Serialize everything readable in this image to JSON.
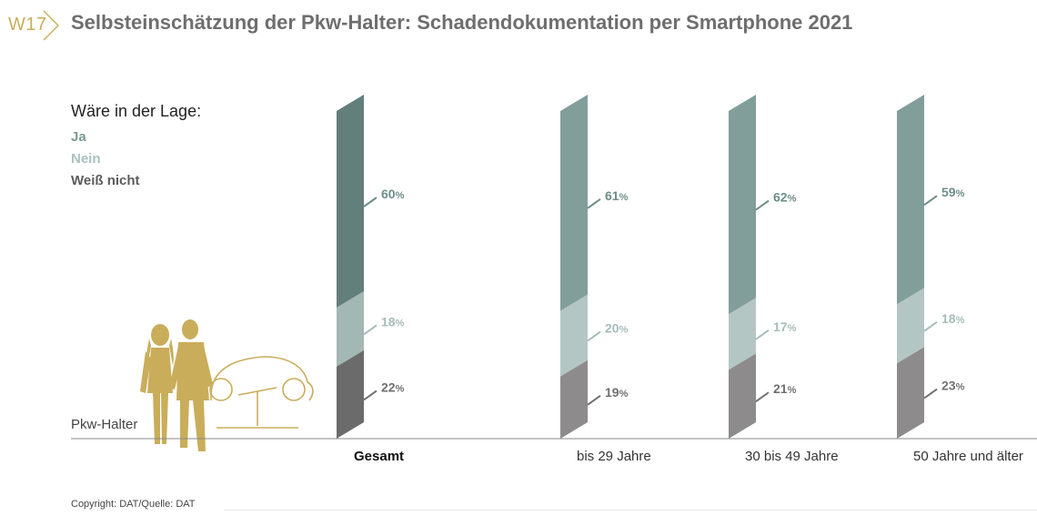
{
  "header": {
    "badge": "W17",
    "title": "Selbsteinschätzung der Pkw-Halter: Schadendokumentation per Smartphone 2021"
  },
  "legend": {
    "title": "Wäre in der Lage:",
    "items": [
      {
        "label": "Ja",
        "color": "#7a9a96"
      },
      {
        "label": "Nein",
        "color": "#a9c1be"
      },
      {
        "label": "Weiß nicht",
        "color": "#5c5c5c"
      }
    ]
  },
  "baseline_label": "Pkw-Halter",
  "copyright": "Copyright: DAT/Quelle: DAT",
  "colors": {
    "highlight": {
      "ja": "#637f7b",
      "nein": "#a3b7b4",
      "weiss": "#6b6b6b"
    },
    "normal": {
      "ja": "#829e9b",
      "nein": "#b4c6c4",
      "weiss": "#8d8b8b"
    },
    "labels": {
      "ja": "#6e8d89",
      "nein": "#a6bcb9",
      "weiss": "#707070"
    },
    "baseline": "#8a8a8a",
    "figure": "#c9ad5a"
  },
  "chart_data": {
    "type": "bar",
    "stacked": true,
    "categories": [
      "Gesamt",
      "bis 29 Jahre",
      "30 bis 49 Jahre",
      "50 Jahre und älter"
    ],
    "highlight_category": "Gesamt",
    "series": [
      {
        "name": "Ja",
        "values": [
          60,
          61,
          62,
          59
        ]
      },
      {
        "name": "Nein",
        "values": [
          18,
          20,
          17,
          18
        ]
      },
      {
        "name": "Weiß nicht",
        "values": [
          22,
          19,
          21,
          23
        ]
      }
    ],
    "unit": "%",
    "ylim": [
      0,
      100
    ],
    "legend_position": "left"
  }
}
